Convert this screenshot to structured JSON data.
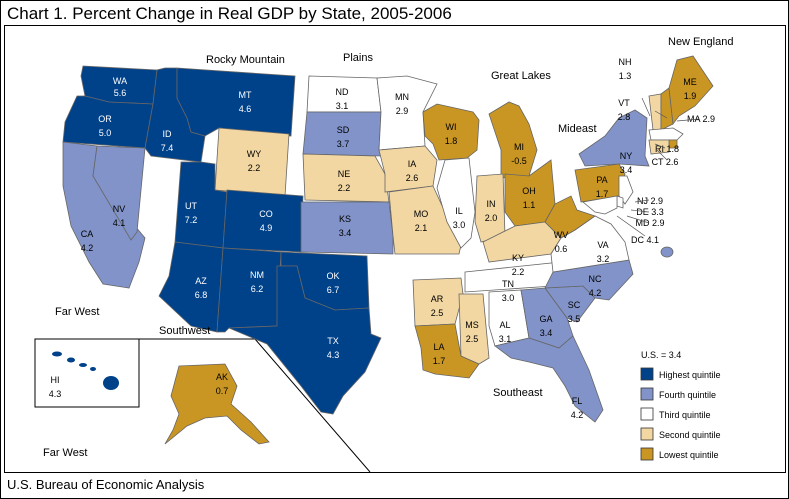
{
  "title": "Chart 1.  Percent Change in Real GDP by State, 2005-2006",
  "source": "U.S. Bureau of Economic Analysis",
  "colors": {
    "Q5": "#00428a",
    "Q4": "#8193c8",
    "Q3": "#ffffff",
    "Q2": "#f2d7a2",
    "Q1": "#c99624"
  },
  "regions": {
    "rocky": "Rocky Mountain",
    "plains": "Plains",
    "great_lakes": "Great Lakes",
    "new_england": "New England",
    "mideast": "Mideast",
    "far_west": "Far West",
    "far_west_inset": "Far West",
    "southwest": "Southwest",
    "southeast": "Southeast"
  },
  "legend": {
    "us_label": "U.S. = 3.4",
    "items": [
      {
        "q": "Q5",
        "label": "Highest quintile"
      },
      {
        "q": "Q4",
        "label": "Fourth quintile"
      },
      {
        "q": "Q3",
        "label": "Third quintile"
      },
      {
        "q": "Q2",
        "label": "Second quintile"
      },
      {
        "q": "Q1",
        "label": "Lowest quintile"
      }
    ]
  },
  "states": [
    {
      "abbr": "WA",
      "value": "5.6",
      "q": "Q5"
    },
    {
      "abbr": "OR",
      "value": "5.0",
      "q": "Q5"
    },
    {
      "abbr": "CA",
      "value": "4.2",
      "q": "Q4"
    },
    {
      "abbr": "NV",
      "value": "4.1",
      "q": "Q4"
    },
    {
      "abbr": "ID",
      "value": "7.4",
      "q": "Q5"
    },
    {
      "abbr": "MT",
      "value": "4.6",
      "q": "Q5"
    },
    {
      "abbr": "WY",
      "value": "2.2",
      "q": "Q2"
    },
    {
      "abbr": "UT",
      "value": "7.2",
      "q": "Q5"
    },
    {
      "abbr": "CO",
      "value": "4.9",
      "q": "Q5"
    },
    {
      "abbr": "AZ",
      "value": "6.8",
      "q": "Q5"
    },
    {
      "abbr": "NM",
      "value": "6.2",
      "q": "Q5"
    },
    {
      "abbr": "OK",
      "value": "6.7",
      "q": "Q5"
    },
    {
      "abbr": "TX",
      "value": "4.3",
      "q": "Q5"
    },
    {
      "abbr": "ND",
      "value": "3.1",
      "q": "Q3"
    },
    {
      "abbr": "SD",
      "value": "3.7",
      "q": "Q4"
    },
    {
      "abbr": "NE",
      "value": "2.2",
      "q": "Q2"
    },
    {
      "abbr": "KS",
      "value": "3.4",
      "q": "Q4"
    },
    {
      "abbr": "MN",
      "value": "2.9",
      "q": "Q3"
    },
    {
      "abbr": "IA",
      "value": "2.6",
      "q": "Q2"
    },
    {
      "abbr": "MO",
      "value": "2.1",
      "q": "Q2"
    },
    {
      "abbr": "AR",
      "value": "2.5",
      "q": "Q2"
    },
    {
      "abbr": "LA",
      "value": "1.7",
      "q": "Q1"
    },
    {
      "abbr": "WI",
      "value": "1.8",
      "q": "Q1"
    },
    {
      "abbr": "IL",
      "value": "3.0",
      "q": "Q3"
    },
    {
      "abbr": "MI",
      "value": "-0.5",
      "q": "Q1"
    },
    {
      "abbr": "IN",
      "value": "2.0",
      "q": "Q2"
    },
    {
      "abbr": "OH",
      "value": "1.1",
      "q": "Q1"
    },
    {
      "abbr": "KY",
      "value": "2.2",
      "q": "Q2"
    },
    {
      "abbr": "TN",
      "value": "3.0",
      "q": "Q3"
    },
    {
      "abbr": "MS",
      "value": "2.5",
      "q": "Q2"
    },
    {
      "abbr": "AL",
      "value": "3.1",
      "q": "Q3"
    },
    {
      "abbr": "GA",
      "value": "3.4",
      "q": "Q4"
    },
    {
      "abbr": "FL",
      "value": "4.2",
      "q": "Q4"
    },
    {
      "abbr": "SC",
      "value": "3.5",
      "q": "Q4"
    },
    {
      "abbr": "NC",
      "value": "4.2",
      "q": "Q4"
    },
    {
      "abbr": "VA",
      "value": "3.2",
      "q": "Q3"
    },
    {
      "abbr": "WV",
      "value": "0.6",
      "q": "Q1"
    },
    {
      "abbr": "PA",
      "value": "1.7",
      "q": "Q1"
    },
    {
      "abbr": "NY",
      "value": "3.4",
      "q": "Q4"
    },
    {
      "abbr": "NJ",
      "value": "2.9",
      "q": "Q3"
    },
    {
      "abbr": "DE",
      "value": "3.3",
      "q": "Q3"
    },
    {
      "abbr": "MD",
      "value": "2.9",
      "q": "Q3"
    },
    {
      "abbr": "DC",
      "value": "4.1",
      "q": "Q4"
    },
    {
      "abbr": "VT",
      "value": "2.8",
      "q": "Q2"
    },
    {
      "abbr": "NH",
      "value": "1.3",
      "q": "Q1"
    },
    {
      "abbr": "ME",
      "value": "1.9",
      "q": "Q1"
    },
    {
      "abbr": "MA",
      "value": "2.9",
      "q": "Q3"
    },
    {
      "abbr": "RI",
      "value": "1.8",
      "q": "Q1"
    },
    {
      "abbr": "CT",
      "value": "2.6",
      "q": "Q2"
    },
    {
      "abbr": "AK",
      "value": "0.7",
      "q": "Q1"
    },
    {
      "abbr": "HI",
      "value": "4.3",
      "q": "Q5"
    }
  ]
}
